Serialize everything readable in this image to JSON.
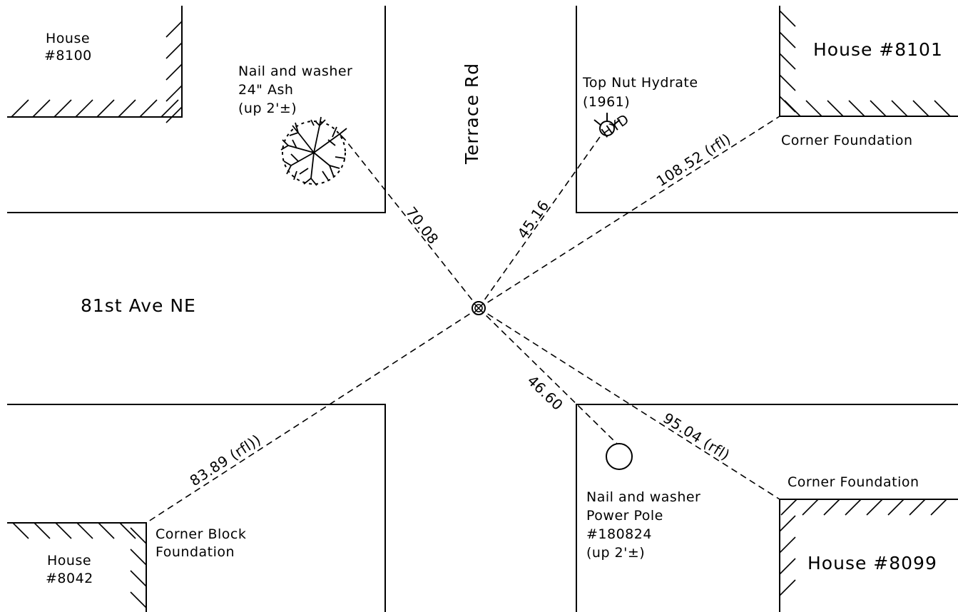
{
  "labels": {
    "house_8100": [
      "House",
      "#8100"
    ],
    "house_8101": "House #8101",
    "house_8042": [
      "House",
      "#8042"
    ],
    "house_8099": "House #8099",
    "street_terrace": "Terrace Rd",
    "street_81st": "81st Ave NE",
    "ash_note": [
      "Nail and washer",
      "24\" Ash",
      "(up 2'±)"
    ],
    "hydrant_note": [
      "Top Nut Hydrate",
      "(1961)"
    ],
    "hydrant_symbol": "HYD",
    "corner_8101": "Corner Foundation",
    "corner_8099": "Corner Foundation",
    "corner_8042": [
      "Corner Block",
      "Foundation"
    ],
    "pole_note": [
      "Nail and washer",
      "Power Pole",
      "#180824",
      "(up 2'±)"
    ]
  },
  "ties": {
    "to_ash": "70.08",
    "to_hydrant": "45.16",
    "to_corner_8101": "108.52 (rfl)",
    "to_corner_8042": "83.89 (rfl))",
    "to_power_pole": "46.60",
    "to_corner_8099": "95.04 (rfl)"
  }
}
